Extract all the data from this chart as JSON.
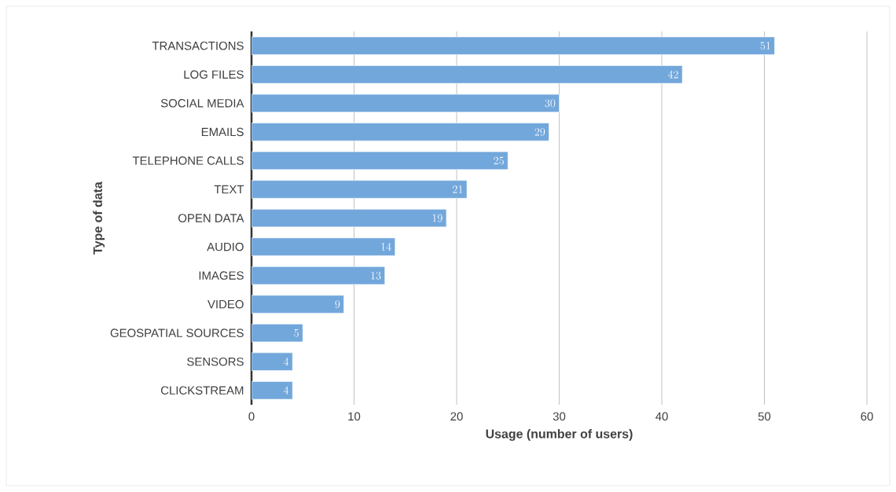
{
  "chart_data": {
    "type": "bar",
    "orientation": "horizontal",
    "xlabel": "Usage (number of users)",
    "ylabel": "Type of data",
    "categories": [
      "TRANSACTIONS",
      "LOG FILES",
      "SOCIAL MEDIA",
      "EMAILS",
      "TELEPHONE CALLS",
      "TEXT",
      "OPEN DATA",
      "AUDIO",
      "IMAGES",
      "VIDEO",
      "GEOSPATIAL SOURCES",
      "SENSORS",
      "CLICKSTREAM"
    ],
    "values": [
      51,
      42,
      30,
      29,
      25,
      21,
      19,
      14,
      13,
      9,
      5,
      4,
      4
    ],
    "color": "#72a7db",
    "xlim": [
      0,
      60
    ],
    "xticks": [
      0,
      10,
      20,
      30,
      40,
      50,
      60
    ],
    "grid": "x",
    "data_labels": true
  }
}
